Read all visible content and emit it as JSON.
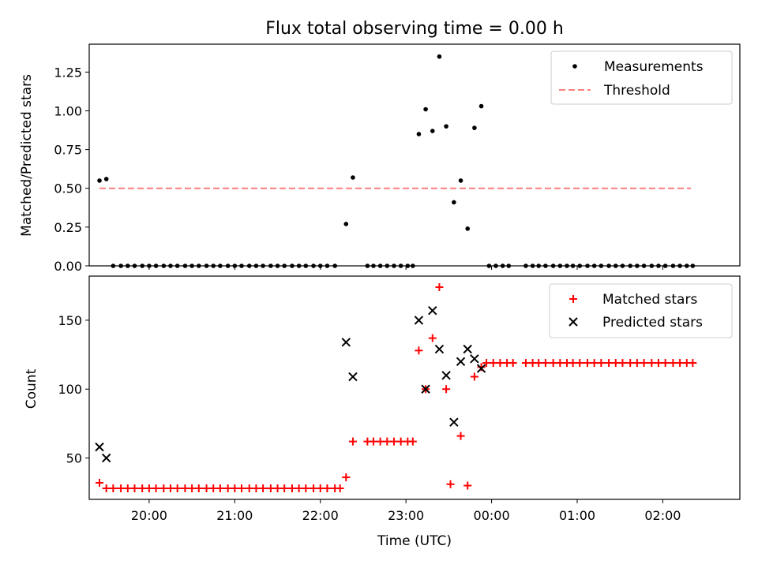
{
  "title": "Flux total observing time = 0.00 h",
  "chart_data": [
    {
      "type": "scatter",
      "ylabel": "Matched/Predicted stars",
      "xlim": [
        -0.7,
        6.9
      ],
      "ylim": [
        0,
        1.43
      ],
      "ytick_values": [
        0.0,
        0.25,
        0.5,
        0.75,
        1.0,
        1.25
      ],
      "yticks": [
        "0.00",
        "0.25",
        "0.50",
        "0.75",
        "1.00",
        "1.25"
      ],
      "legend_position": "top-right",
      "legend": [
        {
          "label": "Measurements",
          "marker": "dot",
          "color": "#000000"
        },
        {
          "label": "Threshold",
          "marker": "dashed-line",
          "color": "#ff7f7f"
        }
      ],
      "threshold": {
        "y": 0.5,
        "x": [
          -0.58,
          6.33
        ]
      },
      "series": [
        {
          "name": "Measurements",
          "color": "#000000",
          "points": [
            [
              -0.58,
              0.55
            ],
            [
              -0.5,
              0.56
            ],
            [
              -0.42,
              0
            ],
            [
              -0.33,
              0
            ],
            [
              -0.25,
              0
            ],
            [
              -0.17,
              0
            ],
            [
              -0.08,
              0
            ],
            [
              0.0,
              0
            ],
            [
              0.08,
              0
            ],
            [
              0.17,
              0
            ],
            [
              0.25,
              0
            ],
            [
              0.33,
              0
            ],
            [
              0.42,
              0
            ],
            [
              0.5,
              0
            ],
            [
              0.58,
              0
            ],
            [
              0.67,
              0
            ],
            [
              0.75,
              0
            ],
            [
              0.83,
              0
            ],
            [
              0.92,
              0
            ],
            [
              1.0,
              0
            ],
            [
              1.08,
              0
            ],
            [
              1.17,
              0
            ],
            [
              1.25,
              0
            ],
            [
              1.33,
              0
            ],
            [
              1.42,
              0
            ],
            [
              1.5,
              0
            ],
            [
              1.58,
              0
            ],
            [
              1.67,
              0
            ],
            [
              1.75,
              0
            ],
            [
              1.83,
              0
            ],
            [
              1.92,
              0
            ],
            [
              2.0,
              0
            ],
            [
              2.08,
              0
            ],
            [
              2.17,
              0
            ],
            [
              2.3,
              0.27
            ],
            [
              2.38,
              0.57
            ],
            [
              2.55,
              0
            ],
            [
              2.62,
              0
            ],
            [
              2.7,
              0
            ],
            [
              2.78,
              0
            ],
            [
              2.86,
              0
            ],
            [
              2.94,
              0
            ],
            [
              3.02,
              0
            ],
            [
              3.08,
              0
            ],
            [
              3.15,
              0.85
            ],
            [
              3.23,
              1.01
            ],
            [
              3.31,
              0.87
            ],
            [
              3.39,
              1.35
            ],
            [
              3.47,
              0.9
            ],
            [
              3.56,
              0.41
            ],
            [
              3.64,
              0.55
            ],
            [
              3.72,
              0.24
            ],
            [
              3.8,
              0.89
            ],
            [
              3.88,
              1.03
            ],
            [
              3.97,
              0
            ],
            [
              4.05,
              0
            ],
            [
              4.13,
              0
            ],
            [
              4.2,
              0
            ],
            [
              4.4,
              0
            ],
            [
              4.48,
              0
            ],
            [
              4.55,
              0
            ],
            [
              4.63,
              0
            ],
            [
              4.72,
              0
            ],
            [
              4.8,
              0
            ],
            [
              4.88,
              0
            ],
            [
              4.95,
              0
            ],
            [
              5.03,
              0
            ],
            [
              5.12,
              0
            ],
            [
              5.2,
              0
            ],
            [
              5.28,
              0
            ],
            [
              5.37,
              0
            ],
            [
              5.45,
              0
            ],
            [
              5.53,
              0
            ],
            [
              5.62,
              0
            ],
            [
              5.7,
              0
            ],
            [
              5.78,
              0
            ],
            [
              5.87,
              0
            ],
            [
              5.95,
              0
            ],
            [
              6.03,
              0
            ],
            [
              6.12,
              0
            ],
            [
              6.2,
              0
            ],
            [
              6.28,
              0
            ],
            [
              6.35,
              0
            ]
          ]
        }
      ]
    },
    {
      "type": "scatter",
      "ylabel": "Count",
      "xlabel": "Time (UTC)",
      "xlim": [
        -0.7,
        6.9
      ],
      "ylim": [
        20,
        182
      ],
      "xtick_values": [
        0,
        1,
        2,
        3,
        4,
        5,
        6
      ],
      "xticks": [
        "20:00",
        "21:00",
        "22:00",
        "23:00",
        "00:00",
        "01:00",
        "02:00"
      ],
      "ytick_values": [
        50,
        100,
        150
      ],
      "yticks": [
        "50",
        "100",
        "150"
      ],
      "legend_position": "top-right",
      "legend": [
        {
          "label": "Matched stars",
          "marker": "plus",
          "color": "#ff0000"
        },
        {
          "label": "Predicted stars",
          "marker": "x",
          "color": "#000000"
        }
      ],
      "series": [
        {
          "name": "Matched stars",
          "color": "#ff0000",
          "marker": "plus",
          "points": [
            [
              -0.58,
              32
            ],
            [
              -0.5,
              28
            ],
            [
              -0.42,
              28
            ],
            [
              -0.33,
              28
            ],
            [
              -0.25,
              28
            ],
            [
              -0.17,
              28
            ],
            [
              -0.08,
              28
            ],
            [
              0.0,
              28
            ],
            [
              0.08,
              28
            ],
            [
              0.17,
              28
            ],
            [
              0.25,
              28
            ],
            [
              0.33,
              28
            ],
            [
              0.42,
              28
            ],
            [
              0.5,
              28
            ],
            [
              0.58,
              28
            ],
            [
              0.67,
              28
            ],
            [
              0.75,
              28
            ],
            [
              0.83,
              28
            ],
            [
              0.92,
              28
            ],
            [
              1.0,
              28
            ],
            [
              1.08,
              28
            ],
            [
              1.17,
              28
            ],
            [
              1.25,
              28
            ],
            [
              1.33,
              28
            ],
            [
              1.42,
              28
            ],
            [
              1.5,
              28
            ],
            [
              1.58,
              28
            ],
            [
              1.67,
              28
            ],
            [
              1.75,
              28
            ],
            [
              1.83,
              28
            ],
            [
              1.92,
              28
            ],
            [
              2.0,
              28
            ],
            [
              2.08,
              28
            ],
            [
              2.17,
              28
            ],
            [
              2.23,
              28
            ],
            [
              2.3,
              36
            ],
            [
              2.38,
              62
            ],
            [
              2.55,
              62
            ],
            [
              2.62,
              62
            ],
            [
              2.7,
              62
            ],
            [
              2.78,
              62
            ],
            [
              2.86,
              62
            ],
            [
              2.94,
              62
            ],
            [
              3.02,
              62
            ],
            [
              3.08,
              62
            ],
            [
              3.15,
              128
            ],
            [
              3.23,
              100
            ],
            [
              3.31,
              137
            ],
            [
              3.39,
              174
            ],
            [
              3.47,
              100
            ],
            [
              3.52,
              31
            ],
            [
              3.64,
              66
            ],
            [
              3.72,
              30
            ],
            [
              3.8,
              109
            ],
            [
              3.88,
              116
            ],
            [
              3.94,
              119
            ],
            [
              4.02,
              119
            ],
            [
              4.1,
              119
            ],
            [
              4.18,
              119
            ],
            [
              4.25,
              119
            ],
            [
              4.4,
              119
            ],
            [
              4.48,
              119
            ],
            [
              4.55,
              119
            ],
            [
              4.63,
              119
            ],
            [
              4.72,
              119
            ],
            [
              4.8,
              119
            ],
            [
              4.88,
              119
            ],
            [
              4.95,
              119
            ],
            [
              5.03,
              119
            ],
            [
              5.12,
              119
            ],
            [
              5.2,
              119
            ],
            [
              5.28,
              119
            ],
            [
              5.37,
              119
            ],
            [
              5.45,
              119
            ],
            [
              5.53,
              119
            ],
            [
              5.62,
              119
            ],
            [
              5.7,
              119
            ],
            [
              5.78,
              119
            ],
            [
              5.87,
              119
            ],
            [
              5.95,
              119
            ],
            [
              6.03,
              119
            ],
            [
              6.12,
              119
            ],
            [
              6.2,
              119
            ],
            [
              6.28,
              119
            ],
            [
              6.35,
              119
            ]
          ]
        },
        {
          "name": "Predicted stars",
          "color": "#000000",
          "marker": "x",
          "points": [
            [
              -0.58,
              58
            ],
            [
              -0.5,
              50
            ],
            [
              2.3,
              134
            ],
            [
              2.38,
              109
            ],
            [
              3.15,
              150
            ],
            [
              3.23,
              100
            ],
            [
              3.31,
              157
            ],
            [
              3.39,
              129
            ],
            [
              3.47,
              110
            ],
            [
              3.56,
              76
            ],
            [
              3.64,
              120
            ],
            [
              3.72,
              129
            ],
            [
              3.8,
              122
            ],
            [
              3.88,
              115
            ]
          ]
        }
      ]
    }
  ]
}
